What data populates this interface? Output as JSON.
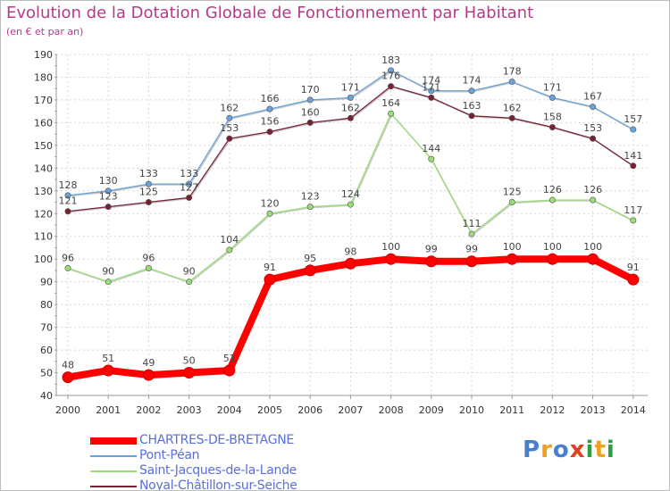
{
  "title": "Evolution de la Dotation Globale de Fonctionnement par Habitant",
  "subtitle": "(en € et par an)",
  "logo": {
    "text": "Proxiti",
    "colors": [
      "#4a7fd0",
      "#f0a020",
      "#4a7fd0",
      "#e04020",
      "#2aa040",
      "#f0a020",
      "#2aa040"
    ]
  },
  "chart_data": {
    "type": "line",
    "title": "Evolution de la Dotation Globale de Fonctionnement par Habitant",
    "subtitle": "(en € et par an)",
    "xlabel": "",
    "ylabel": "",
    "categories": [
      "2000",
      "2001",
      "2002",
      "2003",
      "2004",
      "2005",
      "2006",
      "2007",
      "2008",
      "2009",
      "2010",
      "2011",
      "2012",
      "2013",
      "2014"
    ],
    "ylim": [
      40,
      190
    ],
    "yticks": [
      40,
      50,
      60,
      70,
      80,
      90,
      100,
      110,
      120,
      130,
      140,
      150,
      160,
      170,
      180,
      190
    ],
    "grid": true,
    "legend_position": "bottom-left",
    "series": [
      {
        "name": "CHARTRES-DE-BRETAGNE",
        "color": "#ff0000",
        "values": [
          48,
          51,
          49,
          50,
          51,
          91,
          95,
          98,
          100,
          99,
          99,
          100,
          100,
          100,
          91
        ]
      },
      {
        "name": "Pont-Péan",
        "color": "#6aa3d8",
        "values": [
          128,
          130,
          133,
          133,
          162,
          166,
          170,
          171,
          183,
          174,
          174,
          178,
          171,
          167,
          157
        ]
      },
      {
        "name": "Saint-Jacques-de-la-Lande",
        "color": "#99dd77",
        "values": [
          96,
          90,
          96,
          90,
          104,
          120,
          123,
          124,
          164,
          144,
          111,
          125,
          126,
          126,
          117
        ]
      },
      {
        "name": "Noyal-Châtillon-sur-Seiche",
        "color": "#772233",
        "values": [
          121,
          123,
          125,
          127,
          153,
          156,
          160,
          162,
          176,
          171,
          163,
          162,
          158,
          153,
          141
        ]
      }
    ]
  }
}
